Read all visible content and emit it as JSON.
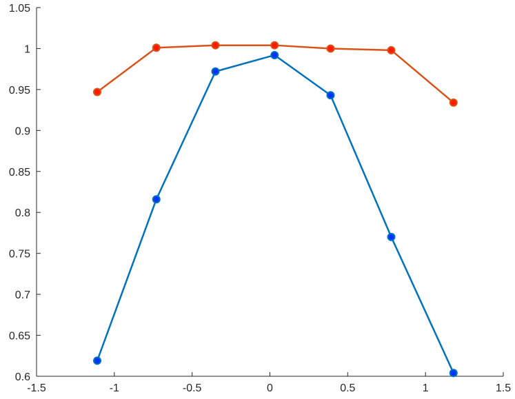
{
  "chart_data": {
    "type": "line",
    "title": "",
    "xlabel": "",
    "ylabel": "",
    "xlim": [
      -1.5,
      1.5
    ],
    "ylim": [
      0.6,
      1.05
    ],
    "xticks": [
      -1.5,
      -1,
      -0.5,
      0,
      0.5,
      1,
      1.5
    ],
    "yticks": [
      0.6,
      0.65,
      0.7,
      0.75,
      0.8,
      0.85,
      0.9,
      0.95,
      1,
      1.05
    ],
    "xtick_labels": [
      "-1.5",
      "-1",
      "-0.5",
      "0",
      "0.5",
      "1",
      "1.5"
    ],
    "ytick_labels": [
      "0.6",
      "0.65",
      "0.7",
      "0.75",
      "0.8",
      "0.85",
      "0.9",
      "0.95",
      "1",
      "1.05"
    ],
    "grid": false,
    "legend": "none",
    "series": [
      {
        "color": "#0072BD",
        "marker_face": "#0033ff",
        "x": [
          -1.11,
          -0.73,
          -0.35,
          0.03,
          0.39,
          0.78,
          1.18
        ],
        "y": [
          0.619,
          0.816,
          0.972,
          0.992,
          0.943,
          0.77,
          0.604
        ]
      },
      {
        "color": "#D95319",
        "marker_face": "#ff1a00",
        "x": [
          -1.11,
          -0.73,
          -0.35,
          0.03,
          0.39,
          0.78,
          1.18
        ],
        "y": [
          0.947,
          1.001,
          1.004,
          1.004,
          1.0,
          0.998,
          0.934
        ]
      }
    ]
  }
}
